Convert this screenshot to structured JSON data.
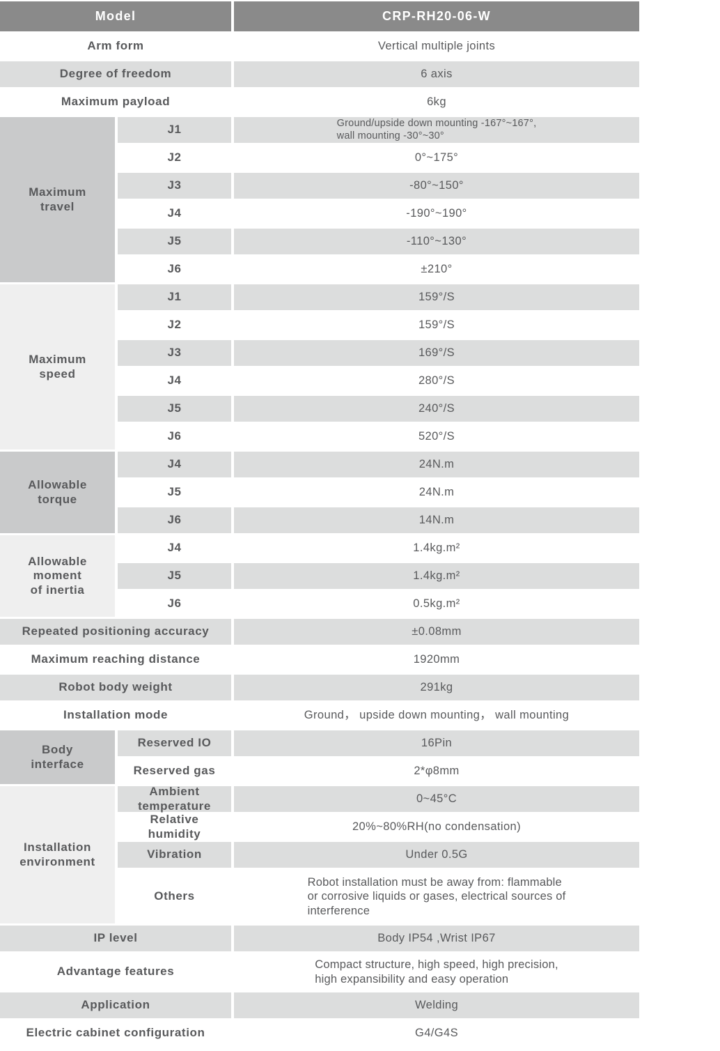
{
  "colors": {
    "header_bg": "#8a8a8a",
    "header_text": "#ffffff",
    "stripe": "#dcdddd",
    "white": "#ffffff",
    "section_dark": "#c9cacb",
    "section_light": "#efefef",
    "text": "#58595b"
  },
  "table": {
    "header": {
      "label": "Model",
      "value": "CRP-RH20-06-W"
    },
    "sections": [
      {
        "label": "Arm form",
        "value": "Vertical multiple joints"
      },
      {
        "label": "Degree of freedom",
        "value": "6 axis"
      },
      {
        "label": "Maximum payload",
        "value": "6kg"
      },
      {
        "label": "Maximum\ntravel",
        "shade": "dark",
        "rows": [
          {
            "label": "J1",
            "value": "Ground/upside down mounting -167°~167°,\nwall mounting -30°~30°",
            "value_style": "small"
          },
          {
            "label": "J2",
            "value": "0°~175°"
          },
          {
            "label": "J3",
            "value": "-80°~150°"
          },
          {
            "label": "J4",
            "value": "-190°~190°"
          },
          {
            "label": "J5",
            "value": "-110°~130°"
          },
          {
            "label": "J6",
            "value": "±210°"
          }
        ]
      },
      {
        "label": "Maximum\nspeed",
        "shade": "light",
        "rows": [
          {
            "label": "J1",
            "value": "159°/S"
          },
          {
            "label": "J2",
            "value": "159°/S"
          },
          {
            "label": "J3",
            "value": "169°/S"
          },
          {
            "label": "J4",
            "value": "280°/S"
          },
          {
            "label": "J5",
            "value": "240°/S"
          },
          {
            "label": "J6",
            "value": "520°/S"
          }
        ]
      },
      {
        "label": "Allowable\ntorque",
        "shade": "dark",
        "rows": [
          {
            "label": "J4",
            "value": "24N.m"
          },
          {
            "label": "J5",
            "value": "24N.m"
          },
          {
            "label": "J6",
            "value": "14N.m"
          }
        ]
      },
      {
        "label": "Allowable\nmoment\nof inertia",
        "shade": "light",
        "rows": [
          {
            "label": "J4",
            "value": "1.4kg.m²"
          },
          {
            "label": "J5",
            "value": "1.4kg.m²"
          },
          {
            "label": "J6",
            "value": "0.5kg.m²"
          }
        ]
      },
      {
        "label": "Repeated positioning accuracy",
        "value": "±0.08mm"
      },
      {
        "label": "Maximum reaching distance",
        "value": "1920mm"
      },
      {
        "label": "Robot body weight",
        "value": "291kg"
      },
      {
        "label": "Installation mode",
        "value": "Ground， upside down mounting， wall mounting"
      },
      {
        "label": "Body\ninterface",
        "shade": "dark",
        "rows": [
          {
            "label": "Reserved IO",
            "value": "16Pin"
          },
          {
            "label": "Reserved gas",
            "value": "2*φ8mm"
          }
        ]
      },
      {
        "label": "Installation\nenvironment",
        "shade": "light",
        "rows": [
          {
            "label": "Ambient\ntemperature",
            "value": "0~45°C"
          },
          {
            "label": "Relative\nhumidity",
            "value": "20%~80%RH(no condensation)"
          },
          {
            "label": "Vibration",
            "value": "Under 0.5G"
          },
          {
            "label": "Others",
            "value": "Robot installation must be away from: flammable\nor corrosive liquids or gases, electrical sources of\ninterference",
            "value_style": "left",
            "height": 77
          }
        ]
      },
      {
        "label": "IP level",
        "value": "Body IP54 ,Wrist IP67"
      },
      {
        "label": "Advantage features",
        "value": "Compact structure, high speed, high precision,\nhigh expansibility and easy operation",
        "value_style": "left",
        "height": 53
      },
      {
        "label": "Application",
        "value": "Welding"
      },
      {
        "label": "Electric cabinet configuration",
        "value": "G4/G4S"
      }
    ]
  }
}
